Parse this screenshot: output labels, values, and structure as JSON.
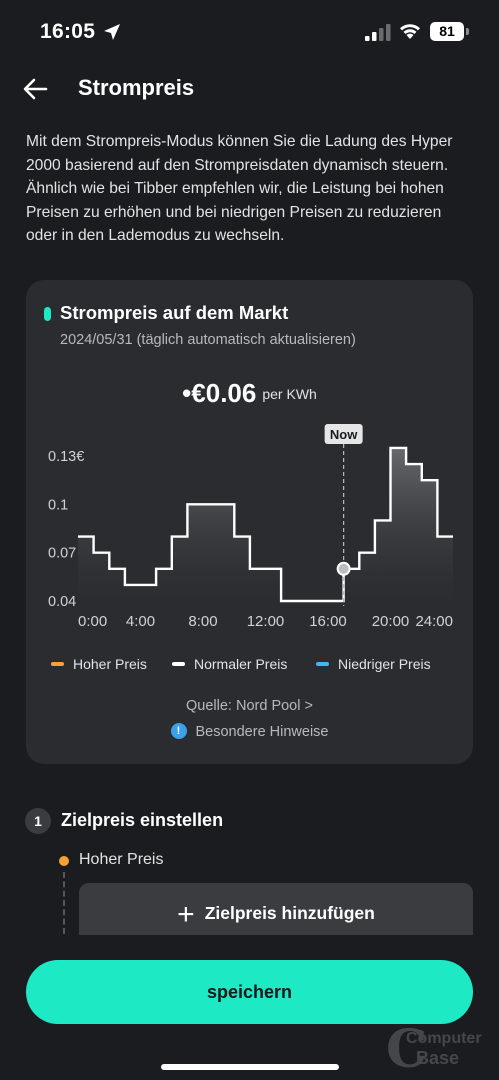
{
  "status_bar": {
    "time": "16:05",
    "battery": "81",
    "icons": [
      "location-arrow-icon",
      "cellular-signal-icon",
      "wifi-icon",
      "battery-icon"
    ]
  },
  "header": {
    "title": "Strompreis",
    "back_icon": "arrow-left-icon"
  },
  "intro_text": " Mit dem Strompreis-Modus können Sie die Ladung des Hyper 2000 basierend auf den Strompreisdaten dynamisch steuern. Ähnlich wie bei Tibber empfehlen wir, die Leistung bei hohen Preisen zu erhöhen und bei niedrigen Preisen zu reduzieren oder in den Lademodus zu wechseln.",
  "market_card": {
    "title": "Strompreis auf dem Markt",
    "date": "2024/05/31 (täglich automatisch aktualisieren)",
    "current_price_bullet": "•",
    "current_price": "€0.06",
    "price_unit": "per KWh",
    "now_label": "Now",
    "legend": [
      {
        "label": "Hoher Preis",
        "color": "#f6a234"
      },
      {
        "label": "Normaler Preis",
        "color": "#ffffff"
      },
      {
        "label": "Niedriger Preis",
        "color": "#3fb6f2"
      }
    ],
    "source": "Quelle: Nord Pool >",
    "notes": "Besondere Hinweise",
    "notes_icon": "info-icon"
  },
  "chart_data": {
    "type": "line",
    "step": true,
    "x_tick_labels": [
      "0:00",
      "4:00",
      "8:00",
      "12:00",
      "16:00",
      "20:00",
      "24:00"
    ],
    "y_tick_labels": [
      "0.13€",
      "0.1",
      "0.07",
      "0.04"
    ],
    "x_ticks": [
      0,
      4,
      8,
      12,
      16,
      20,
      24
    ],
    "y_ticks": [
      0.13,
      0.1,
      0.07,
      0.04
    ],
    "xlim": [
      0,
      24
    ],
    "ylim": [
      0.04,
      0.13
    ],
    "now_hour": 17,
    "current_value": 0.06,
    "series": [
      {
        "color": "#ffffff",
        "hours": [
          0,
          1,
          2,
          3,
          4,
          5,
          6,
          7,
          8,
          9,
          10,
          11,
          12,
          13,
          14,
          15,
          16,
          17,
          18,
          19,
          20,
          21,
          22,
          23
        ],
        "values": [
          0.08,
          0.07,
          0.06,
          0.05,
          0.05,
          0.06,
          0.08,
          0.1,
          0.1,
          0.1,
          0.08,
          0.06,
          0.06,
          0.04,
          0.04,
          0.04,
          0.04,
          0.06,
          0.07,
          0.09,
          0.135,
          0.125,
          0.115,
          0.08
        ]
      }
    ],
    "grid": false,
    "legend_position": "bottom"
  },
  "section": {
    "step_number": "1",
    "title": "Zielpreis einstellen",
    "high_price_label": "Hoher Preis",
    "add_button_plus": "+",
    "add_button_label": "Zielpreis hinzufügen"
  },
  "save_button": "speichern",
  "watermark": {
    "letter": "C",
    "line1": "Computer",
    "line2": "Base"
  }
}
